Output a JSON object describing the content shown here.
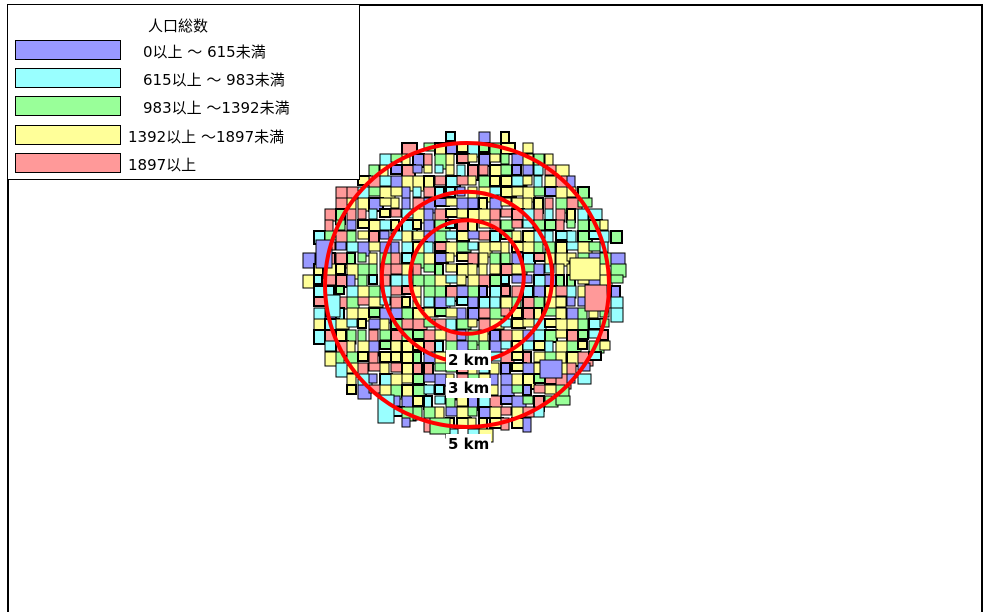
{
  "legend": {
    "title": "人口総数",
    "items": [
      {
        "label": "　0以上 ～ 615未満",
        "color": "#9999ff"
      },
      {
        "label": "　615以上 ～ 983未満",
        "color": "#99ffff"
      },
      {
        "label": "　983以上 ～1392未満",
        "color": "#99ff99"
      },
      {
        "label": "1392以上 ～1897未満",
        "color": "#ffff99"
      },
      {
        "label": "1897以上",
        "color": "#ff9999"
      }
    ]
  },
  "rings": [
    {
      "label": "2 km",
      "radius_km": 2
    },
    {
      "label": "3 km",
      "radius_km": 3
    },
    {
      "label": "5 km",
      "radius_km": 5
    }
  ],
  "colors": {
    "ring": "#ff0000",
    "boundary": "#000000",
    "frame": "#000000"
  }
}
